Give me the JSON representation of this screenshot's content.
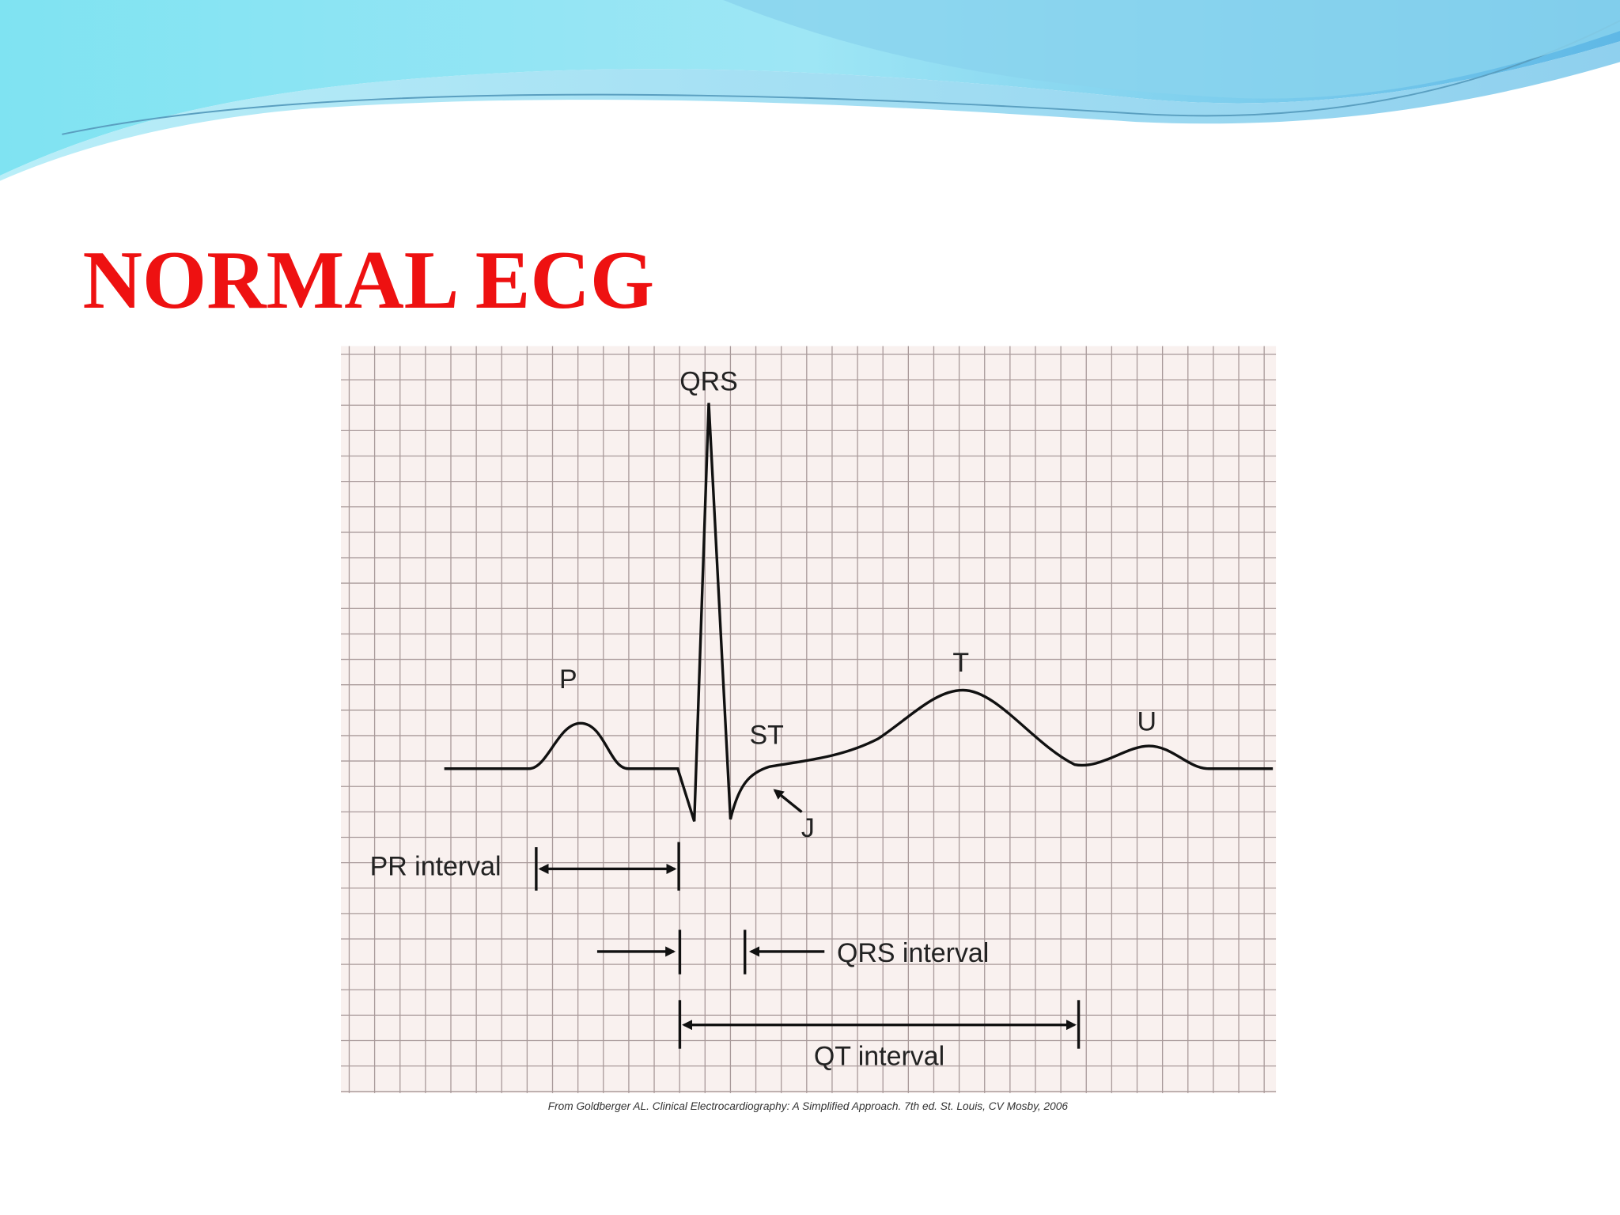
{
  "title": "NORMAL ECG",
  "diagram": {
    "waves": {
      "p": "P",
      "qrs": "QRS",
      "st": "ST",
      "t": "T",
      "u": "U",
      "j": "J"
    },
    "intervals": {
      "pr": "PR interval",
      "qrs": "QRS interval",
      "qt": "QT interval"
    },
    "source": "From Goldberger AL. Clinical Electrocardiography: A Simplified Approach. 7th ed. St. Louis, CV Mosby, 2006"
  }
}
